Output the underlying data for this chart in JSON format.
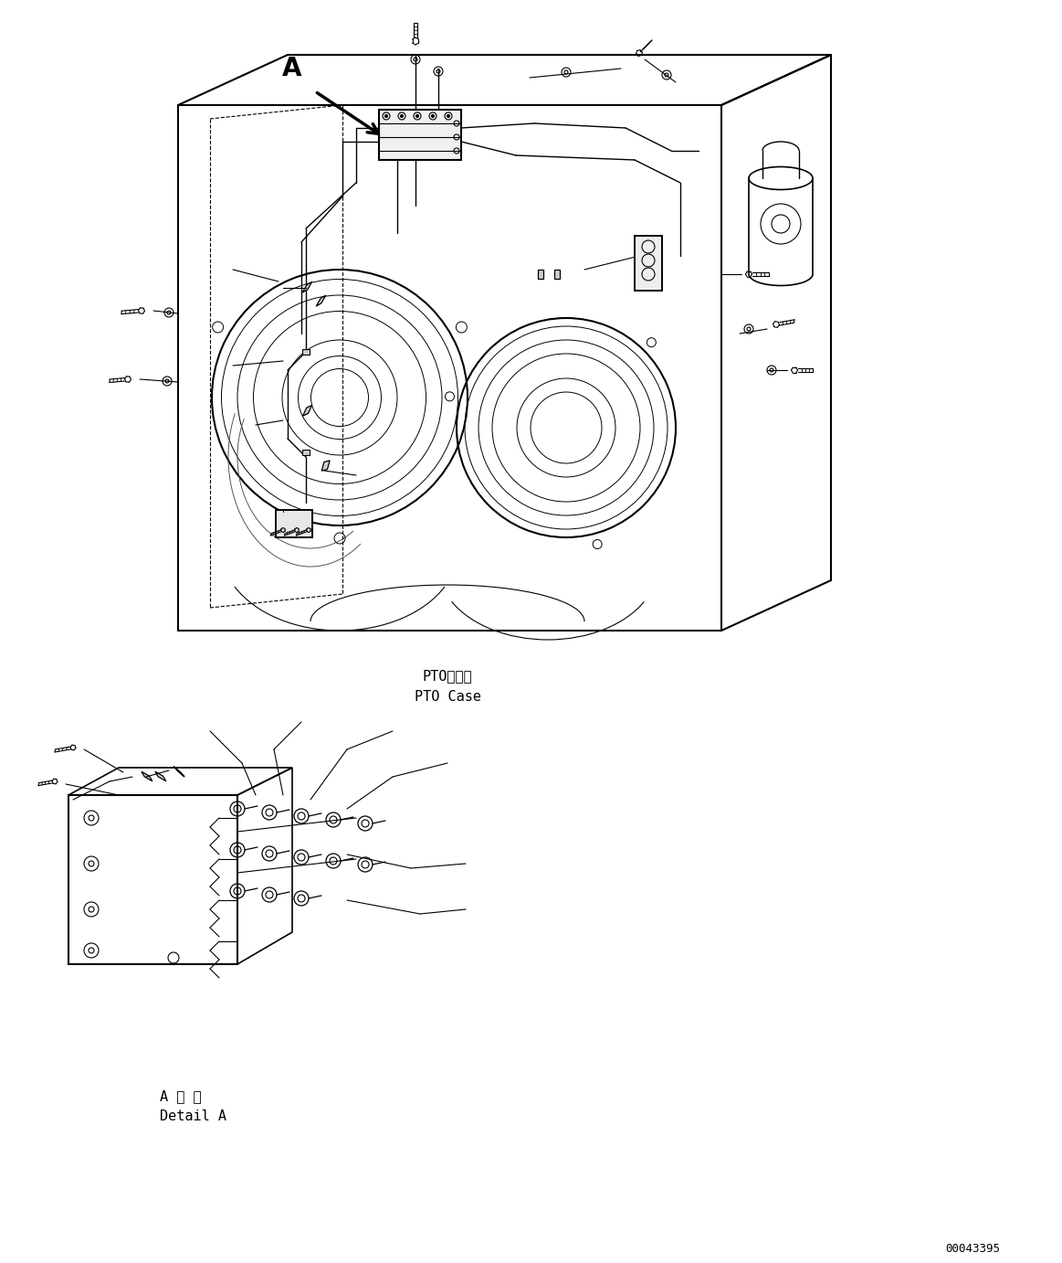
{
  "background_color": "#ffffff",
  "line_color": "#000000",
  "line_width": 1.0,
  "title_text1": "PTOケース",
  "title_text2": "PTO Case",
  "detail_text1": "A 詳 細",
  "detail_text2": "Detail A",
  "label_A": "A",
  "part_number": "00043395",
  "fig_width": 11.63,
  "fig_height": 13.82,
  "dpi": 100
}
